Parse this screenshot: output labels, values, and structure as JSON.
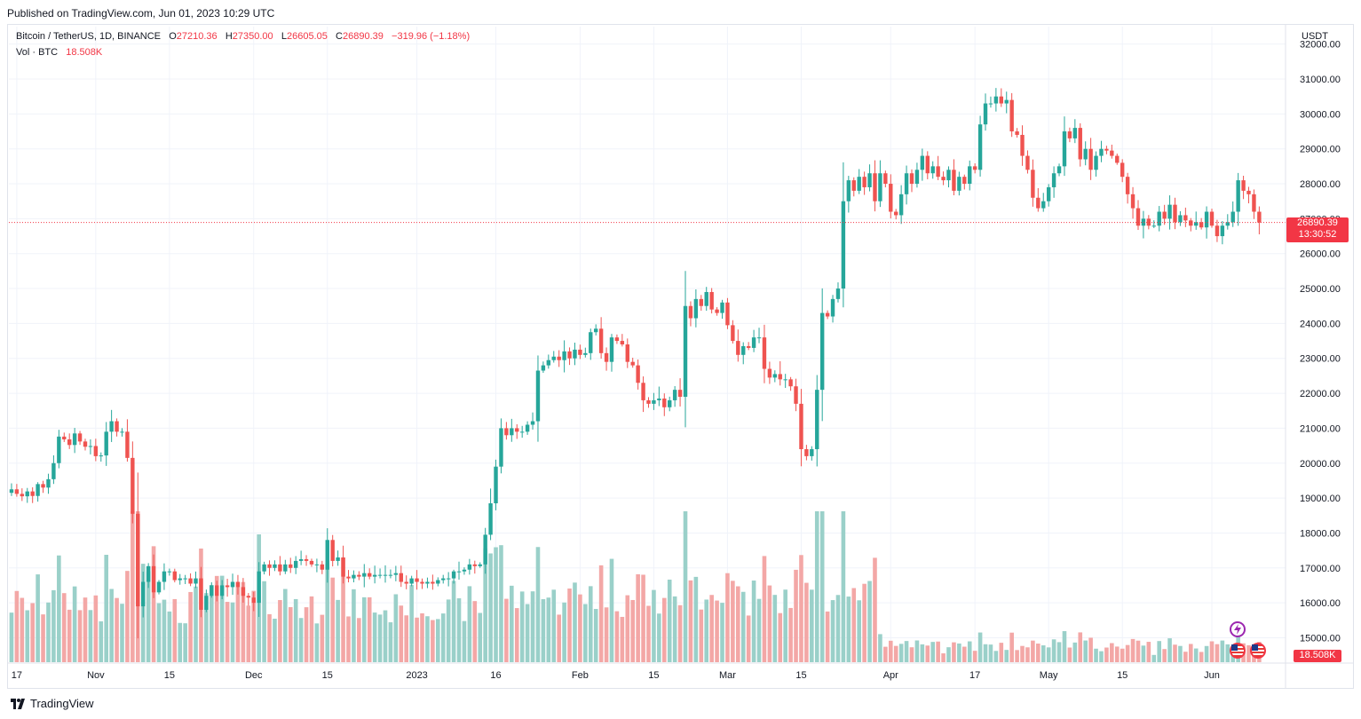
{
  "header": {
    "published": "Published on TradingView.com, Jun 01, 2023 10:29 UTC"
  },
  "legend": {
    "symbol": "Bitcoin / TetherUS, 1D, BINANCE",
    "o_label": "O",
    "o_value": "27210.36",
    "h_label": "H",
    "h_value": "27350.00",
    "l_label": "L",
    "l_value": "26605.05",
    "c_label": "C",
    "c_value": "26890.39",
    "change": "−319.96 (−1.18%)",
    "vol_label": "Vol · BTC",
    "vol_value": "18.508K"
  },
  "price_axis": {
    "currency": "USDT",
    "last_price": "26890.39",
    "countdown": "13:30:52",
    "vol_last": "18.508K"
  },
  "footer": {
    "brand": "TradingView",
    "icon": "tradingview-logo-icon"
  },
  "event_icons": [
    "lightning-icon",
    "us-flag-icon",
    "us-flag-icon"
  ],
  "colors": {
    "up": "#26a69a",
    "down": "#ef5350",
    "vol_up": "#9ad0c9",
    "vol_down": "#f3a7a6",
    "last_price": "#f23645"
  },
  "chart_data": {
    "type": "candlestick",
    "symbol": "Bitcoin / TetherUS",
    "interval": "1D",
    "exchange": "BINANCE",
    "start_date": "2022-10-16",
    "ylim": [
      14300,
      32500
    ],
    "y_ticks": [
      15000,
      16000,
      17000,
      18000,
      19000,
      20000,
      21000,
      22000,
      23000,
      24000,
      25000,
      26000,
      27000,
      28000,
      29000,
      30000,
      31000,
      32000
    ],
    "x_ticks": [
      {
        "label": "17",
        "date": "2022-10-17"
      },
      {
        "label": "Nov",
        "date": "2022-11-01"
      },
      {
        "label": "15",
        "date": "2022-11-15"
      },
      {
        "label": "Dec",
        "date": "2022-12-01"
      },
      {
        "label": "15",
        "date": "2022-12-15"
      },
      {
        "label": "2023",
        "date": "2023-01-01"
      },
      {
        "label": "16",
        "date": "2023-01-16"
      },
      {
        "label": "Feb",
        "date": "2023-02-01"
      },
      {
        "label": "15",
        "date": "2023-02-15"
      },
      {
        "label": "Mar",
        "date": "2023-03-01"
      },
      {
        "label": "15",
        "date": "2023-03-15"
      },
      {
        "label": "Apr",
        "date": "2023-04-01"
      },
      {
        "label": "17",
        "date": "2023-04-17"
      },
      {
        "label": "May",
        "date": "2023-05-01"
      },
      {
        "label": "15",
        "date": "2023-05-15"
      },
      {
        "label": "Jun",
        "date": "2023-06-01"
      }
    ],
    "closes": [
      19250,
      19120,
      19050,
      19190,
      19060,
      19400,
      19300,
      19540,
      20000,
      20760,
      20680,
      20520,
      20850,
      20620,
      20470,
      20490,
      20200,
      20220,
      20900,
      21200,
      20900,
      20900,
      20150,
      18550,
      15900,
      16600,
      17050,
      16300,
      16600,
      16900,
      16900,
      16650,
      16700,
      16700,
      16550,
      16700,
      15800,
      16200,
      16500,
      16200,
      16500,
      16450,
      16600,
      16450,
      16200,
      16150,
      16000,
      16900,
      17100,
      17000,
      17100,
      16900,
      17100,
      17000,
      17200,
      17250,
      17200,
      17100,
      17100,
      16950,
      17800,
      17200,
      17300,
      16750,
      16700,
      16800,
      16750,
      16850,
      16750,
      16800,
      16800,
      16800,
      16800,
      16850,
      16600,
      16550,
      16700,
      16600,
      16550,
      16600,
      16550,
      16650,
      16700,
      16700,
      16900,
      16900,
      16950,
      17100,
      17050,
      17100,
      17950,
      18850,
      19900,
      21000,
      20800,
      21000,
      20900,
      20900,
      21100,
      21200,
      22650,
      22800,
      22950,
      23050,
      22950,
      23200,
      23000,
      23250,
      23100,
      23150,
      23750,
      23850,
      23150,
      22900,
      23600,
      23500,
      23400,
      22900,
      22800,
      22300,
      21800,
      21700,
      21800,
      21850,
      21600,
      21800,
      22100,
      21900,
      24500,
      24150,
      24700,
      24500,
      24900,
      24400,
      24300,
      24600,
      23950,
      23500,
      23100,
      23350,
      23300,
      23600,
      23600,
      22700,
      22450,
      22550,
      22400,
      22400,
      22200,
      21700,
      20400,
      20200,
      20400,
      22100,
      24300,
      24200,
      24700,
      25000,
      27500,
      28100,
      27800,
      28200,
      27900,
      28300,
      27500,
      28300,
      28000,
      27200,
      27100,
      27700,
      28300,
      28000,
      28400,
      28800,
      28300,
      28500,
      28200,
      28100,
      28400,
      27800,
      28200,
      28000,
      28500,
      28400,
      29700,
      30300,
      30300,
      30500,
      30300,
      30400,
      29500,
      29400,
      28800,
      28400,
      27600,
      27300,
      27500,
      27900,
      28300,
      28500,
      29500,
      29300,
      29600,
      28700,
      29000,
      28400,
      28800,
      29000,
      28950,
      28800,
      28600,
      28200,
      27700,
      27300,
      26800,
      27000,
      26800,
      26800,
      27200,
      27000,
      27400,
      26900,
      27100,
      26950,
      26800,
      26900,
      26750,
      27200,
      26800,
      26500,
      26800,
      26900,
      27200,
      28100,
      27800,
      27700,
      27200,
      26890
    ],
    "volume_note": "Volume bars per day, BTC; latest 18.508K"
  }
}
